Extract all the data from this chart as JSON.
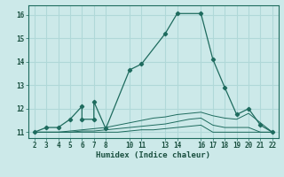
{
  "title": "",
  "xlabel": "Humidex (Indice chaleur)",
  "ylabel": "",
  "background_color": "#cce9e9",
  "grid_color": "#b0d8d8",
  "line_color": "#1e6b5e",
  "x_ticks_labeled": [
    2,
    3,
    4,
    5,
    6,
    7,
    8,
    10,
    11,
    13,
    14,
    16,
    17,
    18,
    19,
    20,
    21,
    22
  ],
  "x_ticks_all": [
    2,
    3,
    4,
    5,
    6,
    7,
    8,
    9,
    10,
    11,
    12,
    13,
    14,
    15,
    16,
    17,
    18,
    19,
    20,
    21,
    22
  ],
  "xlim": [
    1.5,
    22.5
  ],
  "ylim": [
    10.75,
    16.4
  ],
  "yticks": [
    11,
    12,
    13,
    14,
    15,
    16
  ],
  "series1_x": [
    2,
    3,
    4,
    5,
    6,
    6,
    7,
    7,
    8,
    10,
    11,
    13,
    14,
    16,
    17,
    18,
    19,
    20,
    21,
    22
  ],
  "series1_y": [
    11.0,
    11.2,
    11.2,
    11.55,
    12.1,
    11.55,
    11.55,
    12.3,
    11.15,
    13.65,
    13.9,
    15.2,
    16.05,
    16.05,
    14.1,
    12.9,
    11.75,
    12.0,
    11.3,
    11.0
  ],
  "series2_x": [
    2,
    3,
    4,
    5,
    6,
    7,
    8,
    9,
    10,
    11,
    12,
    13,
    14,
    15,
    16,
    17,
    18,
    19,
    20,
    21,
    22
  ],
  "series2_y": [
    11.0,
    11.0,
    11.0,
    11.0,
    11.0,
    11.0,
    11.0,
    11.0,
    11.05,
    11.1,
    11.1,
    11.15,
    11.2,
    11.25,
    11.3,
    11.0,
    11.0,
    11.0,
    11.0,
    11.0,
    11.0
  ],
  "series3_x": [
    2,
    3,
    4,
    5,
    6,
    7,
    8,
    9,
    10,
    11,
    12,
    13,
    14,
    15,
    16,
    17,
    18,
    19,
    20,
    21,
    22
  ],
  "series3_y": [
    11.0,
    11.0,
    11.0,
    11.0,
    11.05,
    11.05,
    11.1,
    11.15,
    11.2,
    11.25,
    11.3,
    11.35,
    11.45,
    11.55,
    11.6,
    11.3,
    11.2,
    11.2,
    11.2,
    11.0,
    11.0
  ],
  "series4_x": [
    2,
    3,
    4,
    5,
    6,
    7,
    8,
    9,
    10,
    11,
    12,
    13,
    14,
    15,
    16,
    17,
    18,
    19,
    20,
    21,
    22
  ],
  "series4_y": [
    11.0,
    11.0,
    11.0,
    11.05,
    11.1,
    11.15,
    11.2,
    11.3,
    11.4,
    11.5,
    11.6,
    11.65,
    11.75,
    11.8,
    11.85,
    11.7,
    11.6,
    11.55,
    11.8,
    11.4,
    11.0
  ]
}
